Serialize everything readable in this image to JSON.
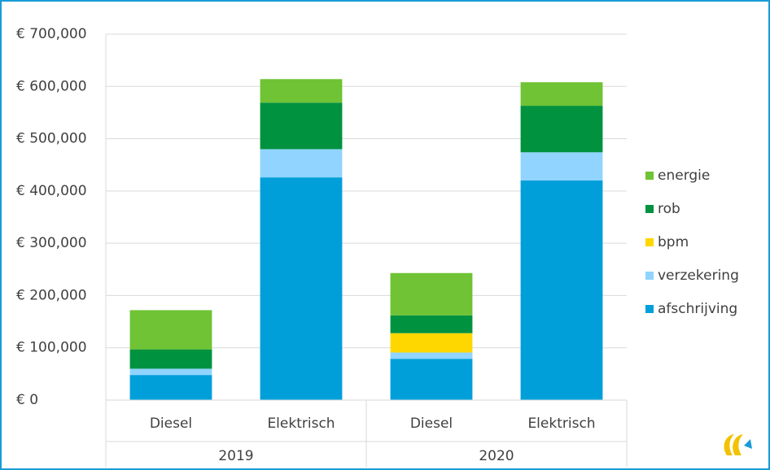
{
  "chart_data": {
    "type": "stacked_bar",
    "categories": [
      "Diesel",
      "Elektrisch",
      "Diesel",
      "Elektrisch"
    ],
    "groups": [
      "2019",
      "2020"
    ],
    "series": [
      {
        "name": "afschrijving",
        "color": "#009fda",
        "values": [
          48000,
          426000,
          79000,
          420000
        ]
      },
      {
        "name": "verzekering",
        "color": "#90d4ff",
        "values": [
          12000,
          54000,
          12000,
          54000
        ]
      },
      {
        "name": "bpm",
        "color": "#ffd700",
        "values": [
          0,
          0,
          37000,
          0
        ]
      },
      {
        "name": "rob",
        "color": "#00923f",
        "values": [
          37000,
          89000,
          34000,
          89000
        ]
      },
      {
        "name": "energie",
        "color": "#6fc334",
        "values": [
          75000,
          45000,
          81000,
          45000
        ]
      }
    ],
    "ylim": [
      0,
      700000
    ],
    "yticks": [
      {
        "value": 0,
        "label": "€ 0"
      },
      {
        "value": 100000,
        "label": "€ 100,000"
      },
      {
        "value": 200000,
        "label": "€ 200,000"
      },
      {
        "value": 300000,
        "label": "€ 300,000"
      },
      {
        "value": 400000,
        "label": "€ 400,000"
      },
      {
        "value": 500000,
        "label": "€ 500,000"
      },
      {
        "value": 600000,
        "label": "€ 600,000"
      },
      {
        "value": 700000,
        "label": "€ 700,000"
      }
    ],
    "grid": true,
    "legend": "right"
  }
}
